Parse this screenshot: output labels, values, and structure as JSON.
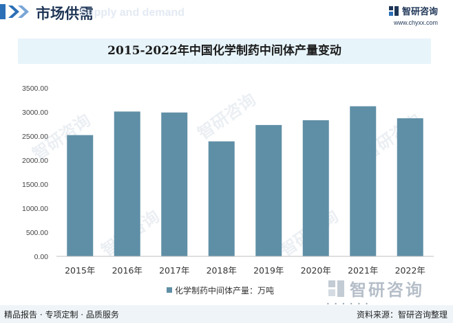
{
  "header": {
    "section_title": "市场供需",
    "ghost_text": "Supply and demand",
    "brand_name": "智研咨询",
    "brand_url": "www.chyxx.com"
  },
  "watermark": {
    "text": "智研咨询"
  },
  "chart_data": {
    "type": "bar",
    "title": "2015-2022年中国化学制药中间体产量变动",
    "categories": [
      "2015年",
      "2016年",
      "2017年",
      "2018年",
      "2019年",
      "2020年",
      "2021年",
      "2022年"
    ],
    "series": [
      {
        "name": "化学制药中间体产量：万吨",
        "values": [
          2520,
          3010,
          2990,
          2390,
          2730,
          2830,
          3120,
          2870
        ]
      }
    ],
    "yticks": [
      "0.00",
      "500.00",
      "1000.00",
      "1500.00",
      "2000.00",
      "2500.00",
      "3000.00",
      "3500.00"
    ],
    "ylim": [
      0,
      3500
    ],
    "grid": false,
    "legend_position": "bottom",
    "bar_color": "#5f8fa6"
  },
  "footer": {
    "left": "精品报告 · 专项定制 · 品质服务",
    "right": "资料来源：智研咨询整理"
  },
  "colors": {
    "title_band": "#e7f4fa",
    "accent": "#2b6fb6"
  }
}
